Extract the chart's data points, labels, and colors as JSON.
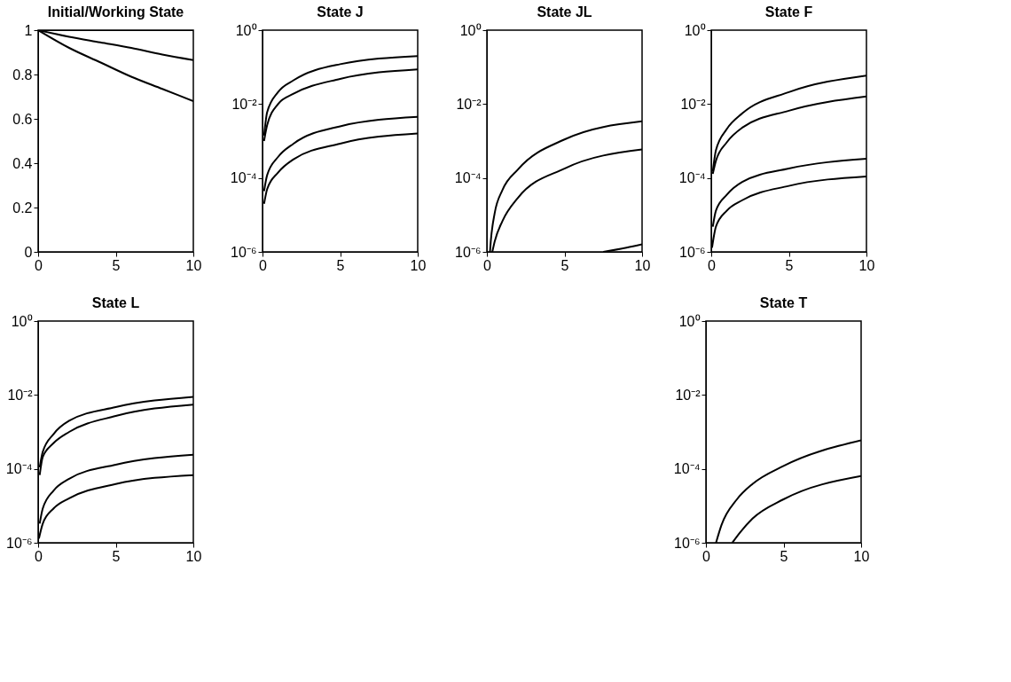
{
  "chart_data": [
    {
      "type": "line",
      "title": "Initial/Working State",
      "xlim": [
        0,
        10
      ],
      "xticks": [
        0,
        5,
        10
      ],
      "ylim": [
        0,
        1
      ],
      "yticks": [
        {
          "value": 0,
          "label": "0"
        },
        0.2,
        0.4,
        0.6,
        0.8,
        {
          "value": 1,
          "label": "1"
        }
      ],
      "grid": false,
      "legend": false,
      "series": [
        {
          "color": "#000000",
          "x": [
            0,
            2,
            4,
            6,
            8,
            10
          ],
          "values": [
            1,
            1,
            1,
            1,
            1,
            1
          ]
        },
        {
          "color": "#000000",
          "x": [
            0,
            2,
            4,
            6,
            8,
            10
          ],
          "values": [
            1,
            0.97,
            0.945,
            0.92,
            0.89,
            0.865
          ]
        },
        {
          "color": "#000000",
          "x": [
            0,
            2,
            4,
            6,
            8,
            10
          ],
          "values": [
            1,
            0.92,
            0.855,
            0.79,
            0.735,
            0.68
          ]
        }
      ]
    },
    {
      "type": "line",
      "title": "State J",
      "log": true,
      "xlim": [
        0,
        10
      ],
      "xticks": [
        0,
        5,
        10
      ],
      "ylim": [
        1e-06,
        1
      ],
      "yticks": [
        {
          "value": 1,
          "label": "10⁰"
        },
        {
          "value": 0.01,
          "label": "10⁻²"
        },
        {
          "value": 0.0001,
          "label": "10⁻⁴"
        },
        {
          "value": 1e-06,
          "label": "10⁻⁶"
        }
      ],
      "grid": false,
      "legend": false,
      "series": [
        {
          "color": "#000000",
          "x": [
            0.1,
            0.3,
            1,
            2,
            5,
            10
          ],
          "values": [
            0.0014,
            0.006,
            0.021,
            0.044,
            0.12,
            0.2
          ]
        },
        {
          "color": "#000000",
          "x": [
            0.1,
            0.3,
            1,
            2,
            5,
            10
          ],
          "values": [
            0.001,
            0.0027,
            0.01,
            0.019,
            0.048,
            0.087
          ]
        },
        {
          "color": "#000000",
          "x": [
            0.1,
            0.3,
            1,
            2,
            5,
            10
          ],
          "values": [
            4.4e-05,
            0.00012,
            0.00037,
            0.00085,
            0.0025,
            0.0045
          ]
        },
        {
          "color": "#000000",
          "x": [
            0.1,
            0.3,
            1,
            2,
            5,
            10
          ],
          "values": [
            2e-05,
            5e-05,
            0.00014,
            0.00032,
            0.00085,
            0.0016
          ]
        }
      ]
    },
    {
      "type": "line",
      "title": "State JL",
      "log": true,
      "xlim": [
        0,
        10
      ],
      "xticks": [
        0,
        5,
        10
      ],
      "ylim": [
        1e-06,
        1
      ],
      "yticks": [
        {
          "value": 1,
          "label": "10⁰"
        },
        {
          "value": 0.01,
          "label": "10⁻²"
        },
        {
          "value": 0.0001,
          "label": "10⁻⁴"
        },
        {
          "value": 1e-06,
          "label": "10⁻⁶"
        }
      ],
      "grid": false,
      "legend": false,
      "series": [
        {
          "color": "#000000",
          "x": [
            0.2,
            0.25,
            0.5,
            1,
            2,
            5,
            10
          ],
          "values": [
            1e-06,
            1.9e-06,
            1.1e-05,
            4.7e-05,
            0.00017,
            0.0011,
            0.0034
          ]
        },
        {
          "color": "#000000",
          "x": [
            0.35,
            0.5,
            1,
            2,
            5,
            10
          ],
          "values": [
            1e-06,
            1.9e-06,
            6.8e-06,
            2.9e-05,
            0.00018,
            0.00059
          ]
        },
        {
          "color": "#000000",
          "x": [
            7.5,
            9,
            10
          ],
          "values": [
            1e-06,
            1.3e-06,
            1.6e-06
          ]
        }
      ]
    },
    {
      "type": "line",
      "title": "State F",
      "log": true,
      "xlim": [
        0,
        10
      ],
      "xticks": [
        0,
        5,
        10
      ],
      "ylim": [
        1e-06,
        1
      ],
      "yticks": [
        {
          "value": 1,
          "label": "10⁰"
        },
        {
          "value": 0.01,
          "label": "10⁻²"
        },
        {
          "value": 0.0001,
          "label": "10⁻⁴"
        },
        {
          "value": 1e-06,
          "label": "10⁻⁶"
        }
      ],
      "grid": false,
      "legend": false,
      "series": [
        {
          "color": "#000000",
          "x": [
            0.1,
            0.3,
            1,
            2,
            5,
            10
          ],
          "values": [
            0.00015,
            0.00056,
            0.0021,
            0.0056,
            0.021,
            0.059
          ]
        },
        {
          "color": "#000000",
          "x": [
            0.1,
            0.3,
            1,
            2,
            5,
            10
          ],
          "values": [
            0.00013,
            0.00029,
            0.00092,
            0.0023,
            0.0066,
            0.016
          ]
        },
        {
          "color": "#000000",
          "x": [
            0.1,
            0.3,
            1,
            2,
            5,
            10
          ],
          "values": [
            4.8e-06,
            1.3e-05,
            3.5e-05,
            7.8e-05,
            0.00018,
            0.00033
          ]
        },
        {
          "color": "#000000",
          "x": [
            0.05,
            0.3,
            1,
            2,
            5,
            10
          ],
          "values": [
            1.3e-06,
            4.8e-06,
            1.3e-05,
            2.5e-05,
            6.1e-05,
            0.00011
          ]
        }
      ]
    },
    {
      "type": "line",
      "title": "State L",
      "log": true,
      "xlim": [
        0,
        10
      ],
      "xticks": [
        0,
        5,
        10
      ],
      "ylim": [
        1e-06,
        1
      ],
      "yticks": [
        {
          "value": 1,
          "label": "10⁰"
        },
        {
          "value": 0.01,
          "label": "10⁻²"
        },
        {
          "value": 0.0001,
          "label": "10⁻⁴"
        },
        {
          "value": 1e-06,
          "label": "10⁻⁶"
        }
      ],
      "grid": false,
      "legend": false,
      "series": [
        {
          "color": "#000000",
          "x": [
            0.1,
            0.3,
            1,
            2,
            5,
            10
          ],
          "values": [
            0.00011,
            0.00029,
            0.00088,
            0.002,
            0.0047,
            0.0089
          ]
        },
        {
          "color": "#000000",
          "x": [
            0.1,
            0.3,
            1,
            2,
            5,
            10
          ],
          "values": [
            6.8e-05,
            0.00021,
            0.0005,
            0.001,
            0.0027,
            0.0055
          ]
        },
        {
          "color": "#000000",
          "x": [
            0.1,
            0.3,
            1,
            2,
            5,
            10
          ],
          "values": [
            3.3e-06,
            8.5e-06,
            2.6e-05,
            5.4e-05,
            0.00013,
            0.00024
          ]
        },
        {
          "color": "#000000",
          "x": [
            0.05,
            0.3,
            1,
            2,
            5,
            10
          ],
          "values": [
            1.3e-06,
            3.3e-06,
            8.5e-06,
            1.6e-05,
            3.9e-05,
            6.8e-05
          ]
        }
      ]
    },
    {
      "type": "line",
      "title": "State T",
      "log": true,
      "xlim": [
        0,
        10
      ],
      "xticks": [
        0,
        5,
        10
      ],
      "ylim": [
        1e-06,
        1
      ],
      "yticks": [
        {
          "value": 1,
          "label": "10⁰"
        },
        {
          "value": 0.01,
          "label": "10⁻²"
        },
        {
          "value": 0.0001,
          "label": "10⁻⁴"
        },
        {
          "value": 1e-06,
          "label": "10⁻⁶"
        }
      ],
      "grid": false,
      "legend": false,
      "series": [
        {
          "color": "#000000",
          "x": [
            0.65,
            1,
            2,
            3,
            5,
            10
          ],
          "values": [
            1e-06,
            3e-06,
            1.5e-05,
            3.9e-05,
            0.00012,
            0.00059
          ]
        },
        {
          "color": "#000000",
          "x": [
            1.7,
            2.2,
            3,
            5,
            10
          ],
          "values": [
            1e-06,
            1.9e-06,
            4.5e-06,
            1.5e-05,
            6.4e-05
          ]
        }
      ]
    }
  ]
}
